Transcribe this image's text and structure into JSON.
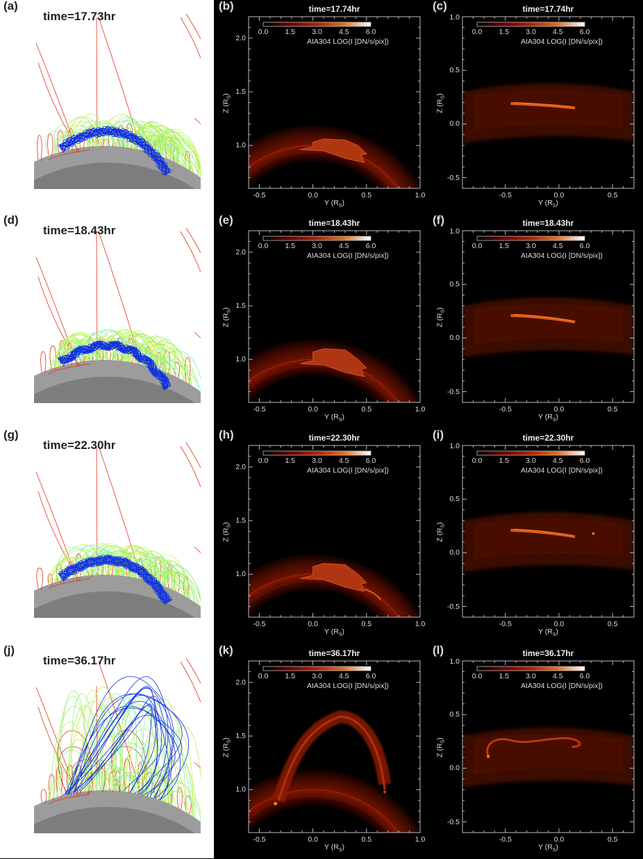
{
  "figure": {
    "rows": [
      {
        "field_label": "(a)",
        "field_time": "time=17.73hr",
        "side_label": "(b)",
        "side_time": "time=17.74hr",
        "top_label": "(c)",
        "top_time": "time=17.74hr",
        "stage": "early"
      },
      {
        "field_label": "(d)",
        "field_time": "time=18.43hr",
        "side_label": "(e)",
        "side_time": "time=18.43hr",
        "top_label": "(f)",
        "top_time": "time=18.43hr",
        "stage": "early2"
      },
      {
        "field_label": "(g)",
        "field_time": "time=22.30hr",
        "side_label": "(h)",
        "side_time": "time=22.30hr",
        "top_label": "(i)",
        "top_time": "time=22.30hr",
        "stage": "mid"
      },
      {
        "field_label": "(j)",
        "field_time": "time=36.17hr",
        "side_label": "(k)",
        "side_time": "time=36.17hr",
        "top_label": "(l)",
        "top_time": "time=36.17hr",
        "stage": "erupt"
      }
    ],
    "colorbar": {
      "ticks": [
        "0.0",
        "1.5",
        "3.0",
        "4.5",
        "6.0"
      ],
      "range": [
        0.0,
        6.0
      ],
      "label": "AIA304 LOG(I [DN/s/pix])",
      "colors": [
        "#000000",
        "#6a0000",
        "#b02000",
        "#e07020",
        "#ffffff"
      ]
    },
    "side_view": {
      "x_axis": {
        "text": "Y (R",
        "sub": "S",
        "end": ")",
        "range": [
          -0.6,
          1.0
        ],
        "ticks": [
          "-0.5",
          "0.0",
          "0.5",
          "1.0"
        ]
      },
      "y_axis": {
        "text": "Z (R",
        "sub": "S",
        "end": ")",
        "range": [
          0.6,
          2.2
        ],
        "ticks": [
          "1.0",
          "1.5",
          "2.0"
        ]
      }
    },
    "top_view": {
      "x_axis": {
        "text": "Y (R",
        "sub": "S",
        "end": ")",
        "range": [
          -0.9,
          0.7
        ],
        "ticks": [
          "-0.5",
          "0.0",
          "0.5"
        ]
      },
      "y_axis": {
        "text": "Z (R",
        "sub": "S",
        "end": ")",
        "range": [
          -0.6,
          1.0
        ],
        "ticks": [
          "-0.5",
          "0.0",
          "0.5",
          "1.0"
        ]
      }
    },
    "field_line_colors": {
      "open": "#e83020",
      "arcade": "#b8f040",
      "arcade_alt": "#80f0b0",
      "rope": "#1030e0",
      "surface": "#8a8a8a"
    }
  }
}
